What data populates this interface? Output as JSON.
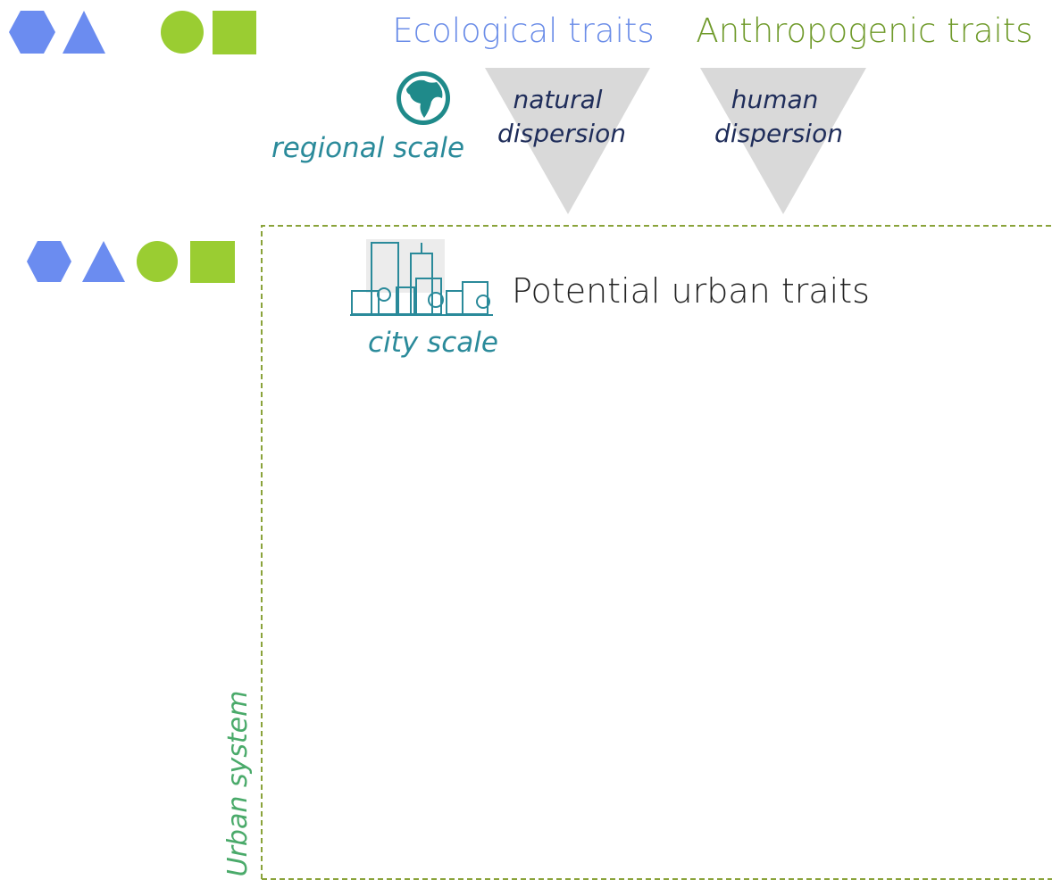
{
  "header": {
    "ecological": "Ecological traits",
    "anthropogenic": "Anthropogenic traits"
  },
  "regional": {
    "label": "regional scale"
  },
  "dispersion": {
    "natural": [
      "natural",
      "dispersion"
    ],
    "human": [
      "human",
      "dispersion"
    ]
  },
  "urban": {
    "title": "Potential urban traits",
    "scale": "city scale",
    "system": "Urban system"
  }
}
